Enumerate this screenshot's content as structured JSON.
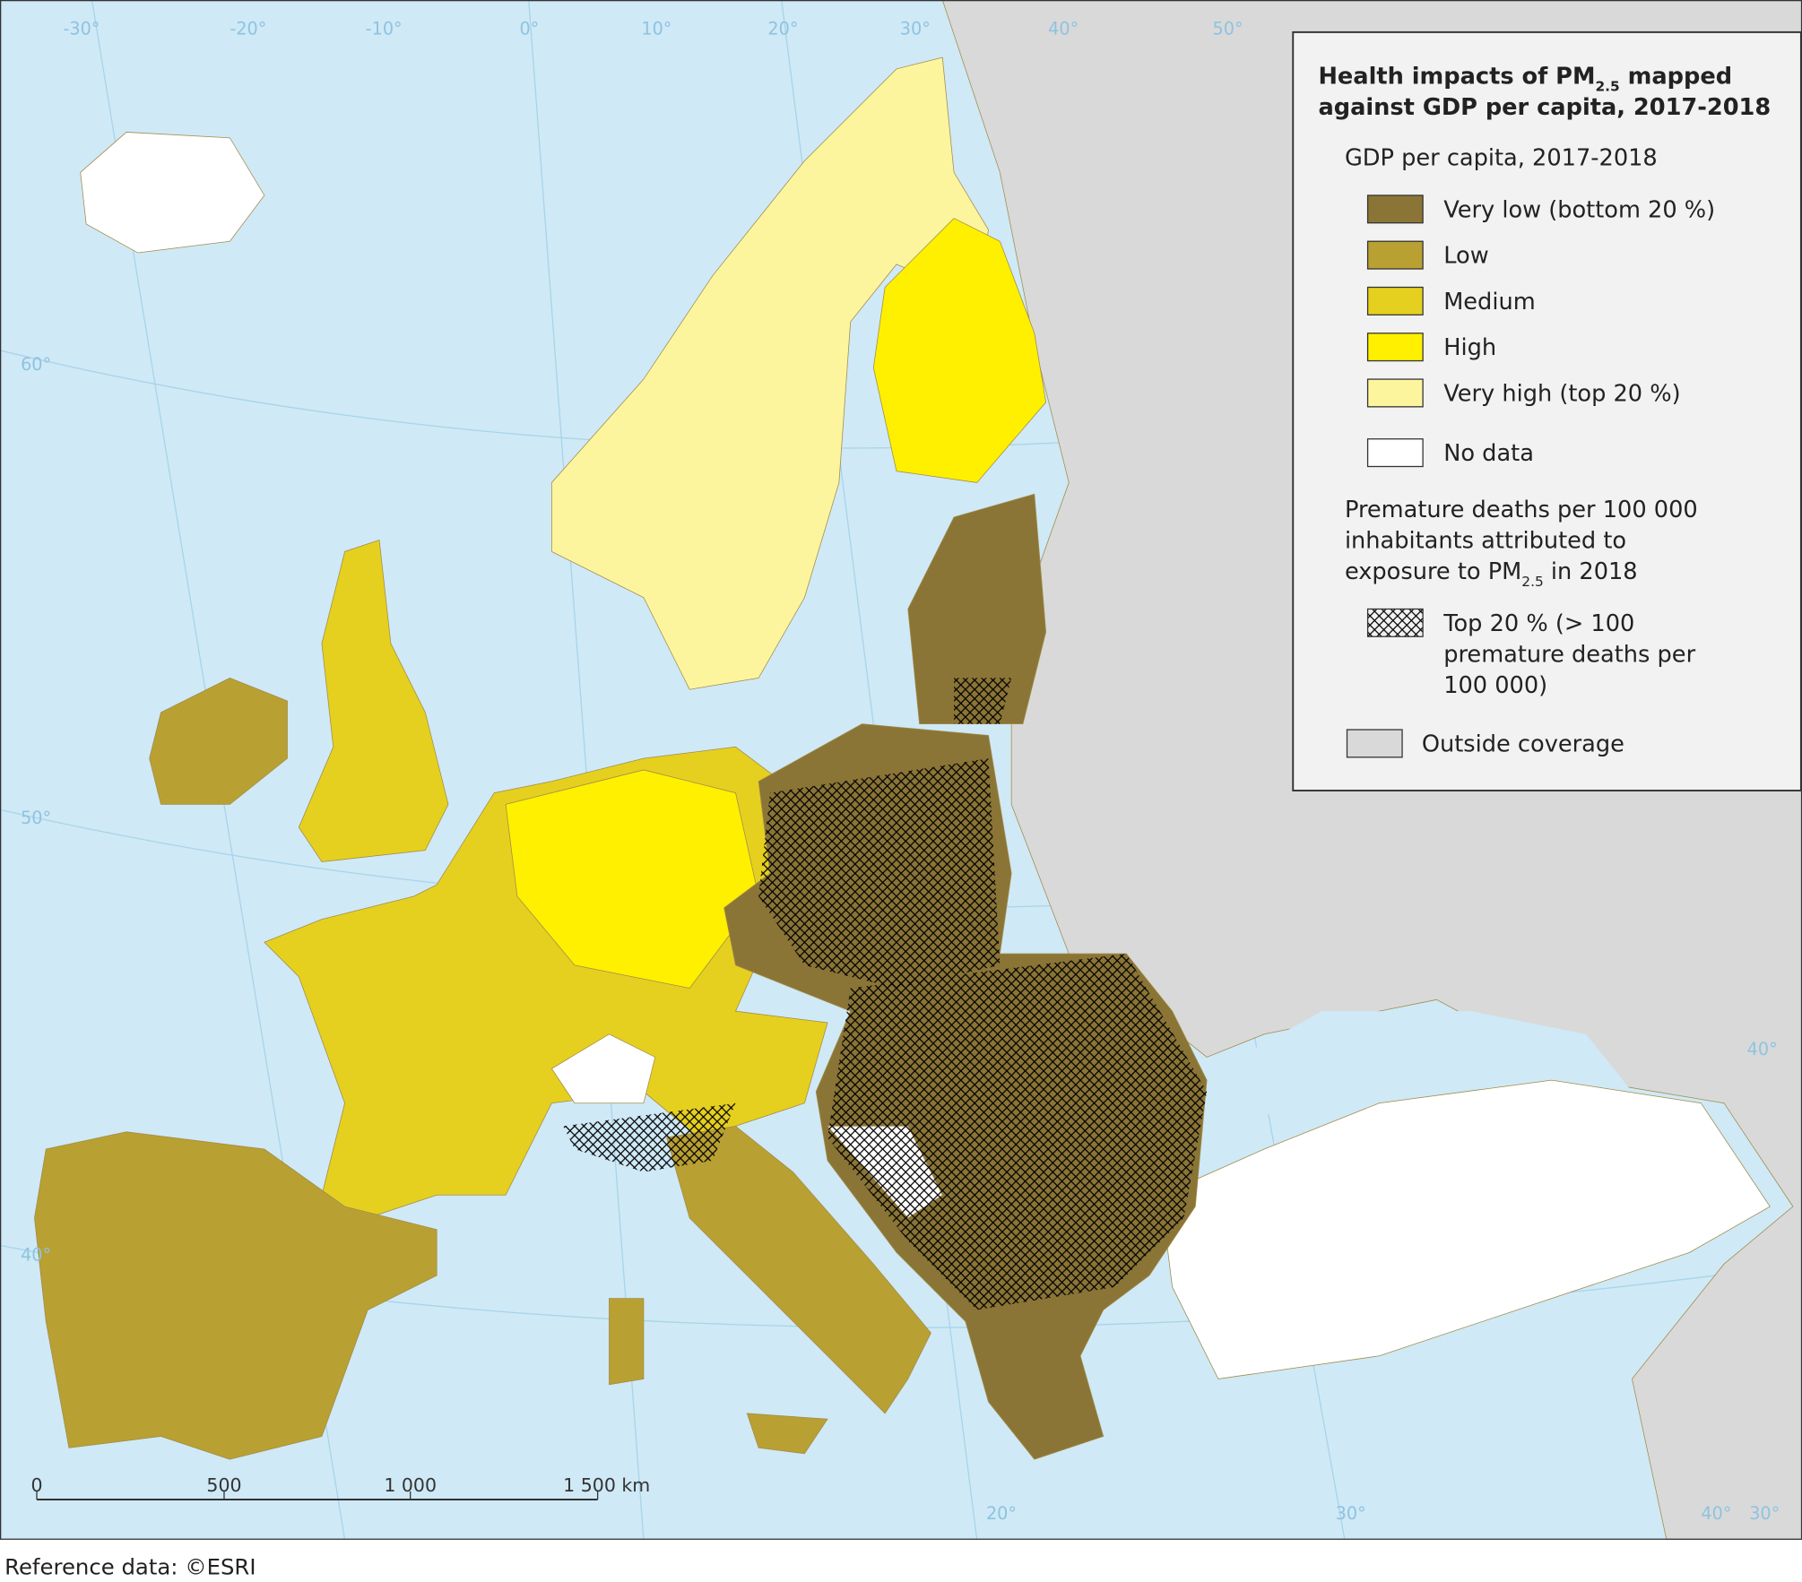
{
  "title": {
    "line1": [
      "Health impacts of PM",
      "2.5",
      " mapped"
    ],
    "line2": "against GDP per capita, 2017-2018"
  },
  "legend": {
    "gdp_heading": "GDP per capita, 2017-2018",
    "classes": [
      {
        "label": "Very low (bottom 20 %)",
        "color": "#8b7536"
      },
      {
        "label": "Low",
        "color": "#b9a032"
      },
      {
        "label": "Medium",
        "color": "#e6d01f"
      },
      {
        "label": "High",
        "color": "#fff000"
      },
      {
        "label": "Very high (top 20 %)",
        "color": "#fdf59e"
      },
      {
        "label": "No data",
        "color": "#ffffff"
      }
    ],
    "deaths_heading": {
      "lines": [
        "Premature deaths per 100 000",
        "inhabitants attributed to"
      ],
      "line3": [
        "exposure to PM",
        "2.5",
        " in 2018"
      ]
    },
    "hatch": {
      "lines": [
        "Top 20 % (> 100",
        "premature deaths per",
        "100 000)"
      ]
    },
    "outside": {
      "label": "Outside coverage",
      "color": "#d9d9d9"
    }
  },
  "sea_color": "#cfe9f6",
  "graticule_labels": [
    "-30°",
    "-20°",
    "-10°",
    "0°",
    "10°",
    "20°",
    "30°",
    "40°",
    "50°",
    "60°",
    "50°",
    "40°",
    "40°",
    "20°",
    "30°",
    "40°",
    "30°"
  ],
  "scale_bar": [
    "0",
    "500",
    "1 000",
    "1 500 km"
  ],
  "footer": "Reference data: ©ESRI"
}
